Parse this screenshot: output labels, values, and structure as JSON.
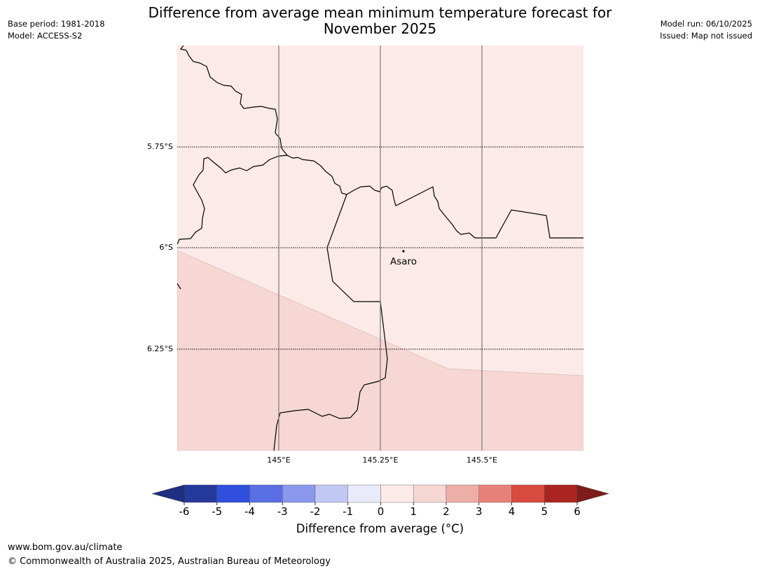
{
  "header": {
    "title_line1": "Difference from average mean minimum temperature forecast for",
    "title_line2": "November 2025",
    "base_period": "Base period: 1981-2018",
    "model": "Model: ACCESS-S2",
    "model_run": "Model run: 06/10/2025",
    "issued": "Issued: Map not issued"
  },
  "map": {
    "lat_labels": [
      "5.75°S",
      "6°S",
      "6.25°S"
    ],
    "lon_labels": [
      "145°E",
      "145.25°E",
      "145.5°E"
    ],
    "place": "Asaro",
    "colors": {
      "zone_0_1": "#fbeae8",
      "zone_1_2": "#f6d7d4",
      "border": "#000000"
    }
  },
  "colorbar": {
    "ticks": [
      "-6",
      "-5",
      "-4",
      "-3",
      "-2",
      "-1",
      "0",
      "1",
      "2",
      "3",
      "4",
      "5",
      "6"
    ],
    "colors": [
      "#263a9c",
      "#2f4fdc",
      "#5b6fe4",
      "#8a98ec",
      "#c2c8f4",
      "#e9ebfb",
      "#fbeae8",
      "#f6d7d4",
      "#eeaea8",
      "#e6817a",
      "#d94a3f",
      "#ab2520"
    ],
    "under_color": "#1e2e80",
    "over_color": "#7d1c18",
    "label": "Difference from average (°C)"
  },
  "footer": {
    "url": "www.bom.gov.au/climate",
    "copyright": "© Commonwealth of Australia 2025, Australian Bureau of Meteorology"
  }
}
